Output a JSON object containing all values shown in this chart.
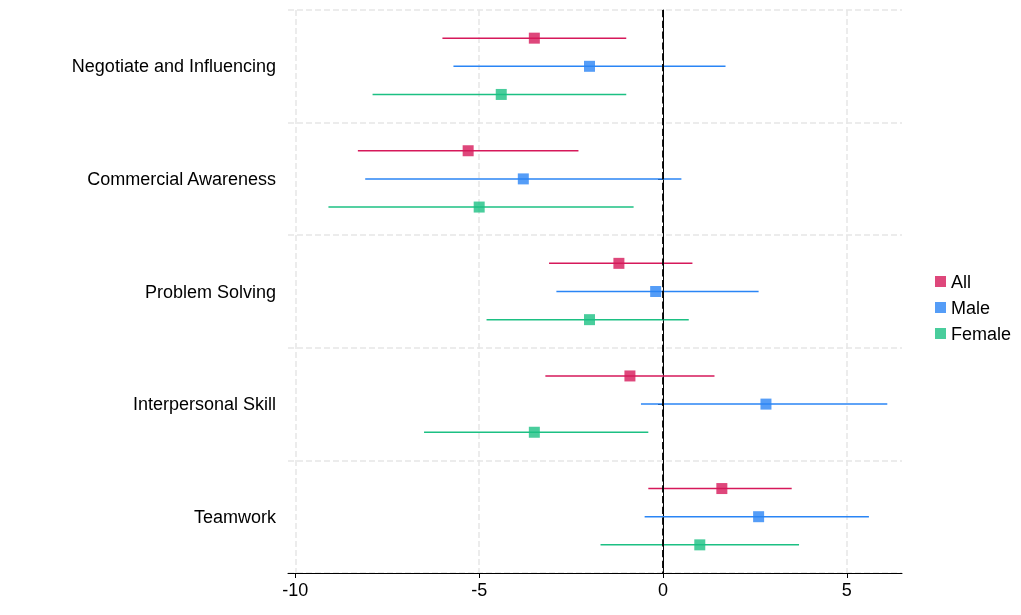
{
  "chart_data": {
    "type": "scatter",
    "orientation": "horizontal",
    "categories": [
      "Negotiate and Influencing",
      "Commercial Awareness",
      "Problem Solving",
      "Interpersonal Skill",
      "Teamwork"
    ],
    "series": [
      {
        "name": "All",
        "color": "#d6195a",
        "values": [
          -3.5,
          -5.3,
          -1.2,
          -0.9,
          1.6
        ],
        "errors": [
          [
            -6.0,
            -1.0
          ],
          [
            -8.3,
            -2.3
          ],
          [
            -3.1,
            0.8
          ],
          [
            -3.2,
            1.4
          ],
          [
            -0.4,
            3.5
          ]
        ]
      },
      {
        "name": "Male",
        "color": "#2a85f5",
        "values": [
          -2.0,
          -3.8,
          -0.2,
          2.8,
          2.6
        ],
        "errors": [
          [
            -5.7,
            1.7
          ],
          [
            -8.1,
            0.5
          ],
          [
            -2.9,
            2.6
          ],
          [
            -0.6,
            6.1
          ],
          [
            -0.5,
            5.6
          ]
        ]
      },
      {
        "name": "Female",
        "color": "#1cc083",
        "values": [
          -4.4,
          -5.0,
          -2.0,
          -3.5,
          1.0
        ],
        "errors": [
          [
            -7.9,
            -1.0
          ],
          [
            -9.1,
            -0.8
          ],
          [
            -4.8,
            0.7
          ],
          [
            -6.5,
            -0.4
          ],
          [
            -1.7,
            3.7
          ]
        ]
      }
    ],
    "xlim": [
      -10.2,
      6.5
    ],
    "xticks": [
      -10,
      -5,
      0,
      5
    ],
    "ref_lines": [
      {
        "axis": "x",
        "value": 0,
        "color": "#000000",
        "line_style": "dashed"
      }
    ],
    "grid": true,
    "legend": "right",
    "marker": "square"
  }
}
